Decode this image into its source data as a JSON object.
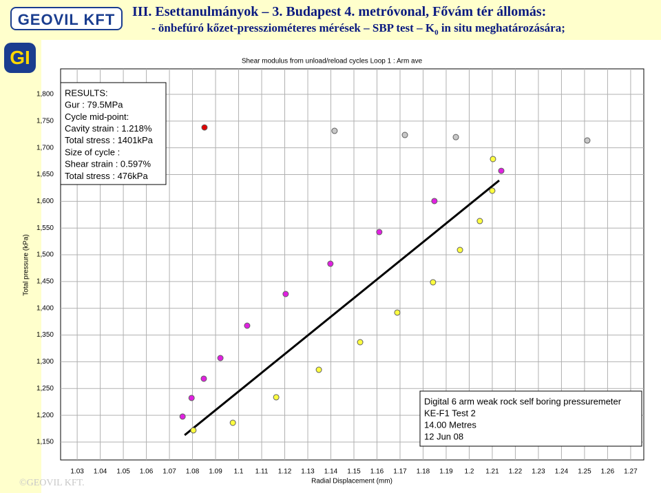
{
  "header": {
    "logo": "GEOVIL KFT",
    "title_line1": "III. Esettanulmányok – 3. Budapest 4. metróvonal, Fővám tér állomás:",
    "title_line2": {
      "before": "- önbefúró kőzet-pressziométeres mérések – SBP test – K",
      "subscript": "0",
      "after": " in situ meghatározására;"
    }
  },
  "side_logo": "GI",
  "footer": "©GEOVIL KFT.",
  "chart_data": {
    "type": "scatter",
    "title": "Shear modulus from unload/reload cycles Loop 1 : Arm ave",
    "x_label": "Radial Displacement (mm)",
    "y_label": "Total pressure (kPa)",
    "xlim": [
      1.0228,
      1.2757
    ],
    "ylim": [
      1116.5,
      1847.6
    ],
    "xticks": [
      1.03,
      1.04,
      1.05,
      1.06,
      1.07,
      1.08,
      1.09,
      1.1,
      1.11,
      1.12,
      1.13,
      1.14,
      1.15,
      1.16,
      1.17,
      1.18,
      1.19,
      1.2,
      1.21,
      1.22,
      1.23,
      1.24,
      1.25,
      1.26,
      1.27
    ],
    "yticks": [
      {
        "value": 1150,
        "label": "1,150"
      },
      {
        "value": 1200,
        "label": "1,200"
      },
      {
        "value": 1250,
        "label": "1,250"
      },
      {
        "value": 1300,
        "label": "1,300"
      },
      {
        "value": 1350,
        "label": "1,350"
      },
      {
        "value": 1400,
        "label": "1,400"
      },
      {
        "value": 1450,
        "label": "1,450"
      },
      {
        "value": 1500,
        "label": "1,500"
      },
      {
        "value": 1550,
        "label": "1,550"
      },
      {
        "value": 1600,
        "label": "1,600"
      },
      {
        "value": 1650,
        "label": "1,650"
      },
      {
        "value": 1700,
        "label": "1,700"
      },
      {
        "value": 1750,
        "label": "1,750"
      },
      {
        "value": 1800,
        "label": "1,800"
      }
    ],
    "grid": true,
    "series": [
      {
        "color": "#e020e0",
        "x": [
          1.0757,
          1.0796,
          1.0849,
          1.0921,
          1.1037,
          1.1204,
          1.1398,
          1.161,
          1.1849,
          1.2139
        ],
        "values": [
          1197.6,
          1232.4,
          1268.4,
          1307,
          1367.5,
          1426.7,
          1483.3,
          1542.5,
          1600.5,
          1657
        ]
      },
      {
        "color": "#ffff40",
        "x": [
          1.0804,
          1.0975,
          1.1163,
          1.1348,
          1.1527,
          1.1688,
          1.1843,
          1.196,
          1.2046,
          1.21,
          1.2103
        ],
        "values": [
          1171.9,
          1186,
          1233.7,
          1285.1,
          1336.6,
          1392,
          1448.6,
          1509,
          1563.1,
          1619.8,
          1679
        ]
      },
      {
        "color": "#c8c8c8",
        "x": [
          1.1416,
          1.1721,
          1.1942,
          1.2512
        ],
        "values": [
          1731.7,
          1724,
          1720,
          1713.7
        ]
      },
      {
        "color": "#e00000",
        "x": [
          1.0852
        ],
        "values": [
          1738.1
        ]
      }
    ],
    "trend_line": {
      "color": "#000000",
      "x": [
        1.0766,
        1.213
      ],
      "values": [
        1162.9,
        1639
      ]
    },
    "results_box": [
      "RESULTS:",
      "Gur : 79.5MPa",
      "Cycle mid-point:",
      "Cavity strain   : 1.218%",
      "Total stress : 1401kPa",
      "Size of cycle :",
      "Shear strain : 0.597%",
      "Total stress : 476kPa"
    ],
    "info_box": [
      "Digital 6 arm weak rock self boring pressuremeter",
      "KE-F1 Test 2",
      "14.00 Metres",
      "12 Jun 08"
    ]
  }
}
